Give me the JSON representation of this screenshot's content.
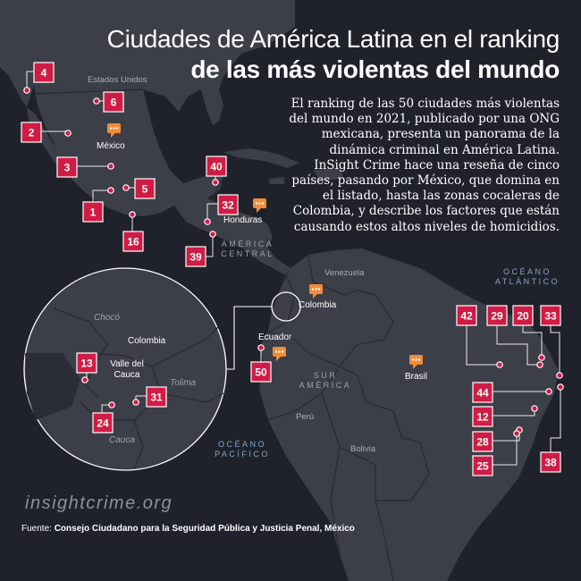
{
  "header": {
    "title_line1": "Ciudades de América Latina en el ranking",
    "title_line2": "de las más violentas del mundo",
    "intro": "El ranking de las 50 ciudades más violentas del mundo en 2021, publicado por una ONG mexicana, presenta un panorama de la dinámica criminal en América Latina. InSight Crime hace una reseña de cinco países, pasando por México, que domina en el listado, hasta las zonas cocaleras de Colombia, y describe los factores que están causando estos altos niveles de homicidios."
  },
  "map_labels": {
    "estados_unidos": "Estados Unidos",
    "mexico": "México",
    "honduras": "Honduras",
    "america_central": "AMÉRICA CENTRAL",
    "venezuela": "Venezuela",
    "colombia": "Colombia",
    "ecuador": "Ecuador",
    "peru": "Perú",
    "bolivia": "Bolivia",
    "brasil": "Brasil",
    "sur_america": "SUR AMÉRICA",
    "oceano_atlantico": "OCÉANO ATLÁNTICO",
    "oceano_pacifico": "OCÉANO PACÍFICO"
  },
  "inset": {
    "choco": "Chocó",
    "colombia": "Colombia",
    "valle": "Valle del Cauca",
    "tolima": "Tolima",
    "cauca": "Cauca"
  },
  "ranks": [
    "4",
    "6",
    "2",
    "3",
    "5",
    "1",
    "16",
    "40",
    "32",
    "39",
    "50",
    "13",
    "31",
    "24",
    "42",
    "29",
    "20",
    "33",
    "44",
    "12",
    "28",
    "25",
    "38"
  ],
  "colors": {
    "background": "#1f222b",
    "land": "#3c3f47",
    "marker": "#d01c44",
    "line": "#e8e8ea",
    "country_icon": "#f08c3a"
  },
  "footer": {
    "brand": "insightcrime.org",
    "source_prefix": "Fuente:",
    "source_text": "Consejo Ciudadano para la Seguridad Pública y Justicia Penal, México"
  }
}
